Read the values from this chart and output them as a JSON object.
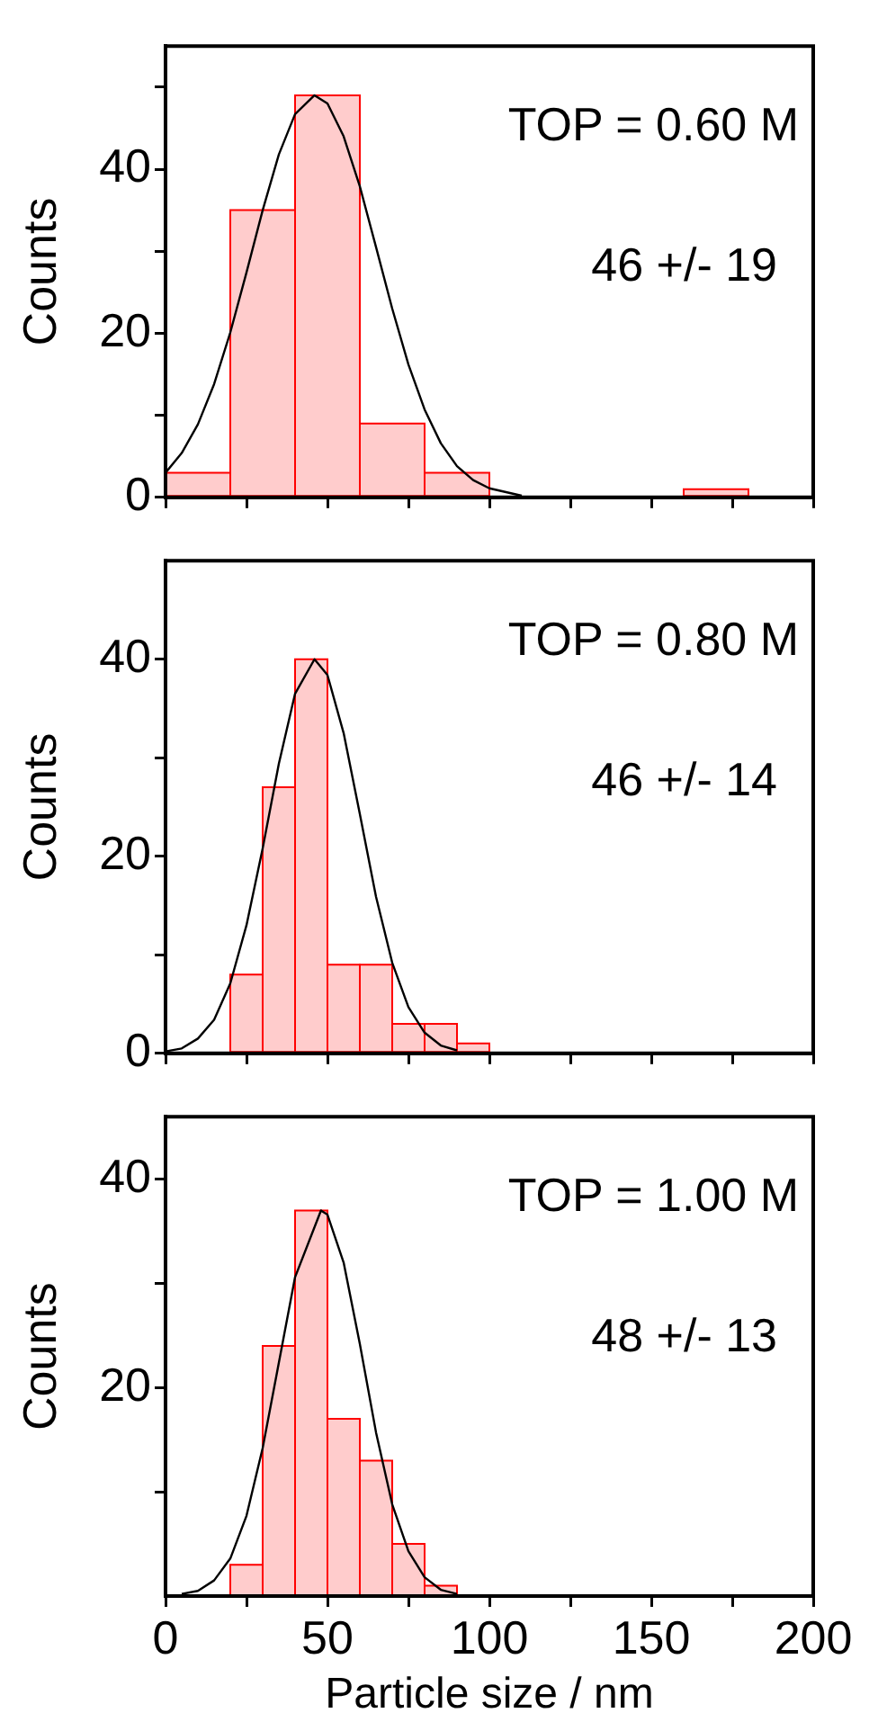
{
  "chart_data": [
    {
      "type": "histogram",
      "bins": [
        0,
        20,
        40,
        60,
        80,
        100,
        120,
        140,
        160,
        180
      ],
      "values": [
        3,
        35,
        49,
        9,
        3,
        0,
        0,
        0,
        1
      ],
      "color": "#ff0000",
      "series": [
        {
          "type": "line",
          "color": "#000000",
          "x": [
            0,
            5,
            10,
            15,
            20,
            25,
            30,
            35,
            40,
            46,
            50,
            55,
            60,
            65,
            70,
            75,
            80,
            85,
            90,
            95,
            100,
            110
          ],
          "values": [
            3,
            5.4,
            8.9,
            13.8,
            20.1,
            27.4,
            35,
            41.8,
            46.7,
            49,
            48,
            44,
            37.9,
            30.5,
            23,
            16.2,
            10.7,
            6.6,
            3.8,
            2.1,
            1.1,
            0.2
          ]
        }
      ],
      "xlim": [
        0,
        200
      ],
      "xticks": [
        0,
        {
          "value": 25,
          "label": null
        },
        50,
        {
          "value": 75,
          "label": null
        },
        100,
        {
          "value": 125,
          "label": null
        },
        150,
        {
          "value": 175,
          "label": null
        },
        200
      ],
      "ylim": [
        0,
        55
      ],
      "yticks": [
        0,
        {
          "value": 10,
          "label": null
        },
        20,
        {
          "value": 30,
          "label": null
        },
        40,
        {
          "value": 50,
          "label": null
        }
      ],
      "ylabel": "Counts",
      "tick_labels": "y",
      "annotations": [
        "TOP = 0.60 M",
        "46 +/- 19"
      ]
    },
    {
      "type": "histogram",
      "bins": [
        20,
        30,
        40,
        50,
        60,
        70,
        80,
        90,
        100
      ],
      "values": [
        8,
        27,
        40,
        9,
        9,
        3,
        3,
        1
      ],
      "color": "#ff0000",
      "series": [
        {
          "type": "line",
          "color": "#000000",
          "x": [
            0,
            5,
            10,
            15,
            20,
            25,
            30,
            35,
            40,
            46,
            50,
            55,
            60,
            65,
            70,
            75,
            80,
            85,
            90
          ],
          "values": [
            0.2,
            0.5,
            1.5,
            3.4,
            7.1,
            13,
            20.8,
            29.4,
            36.5,
            40,
            38.4,
            32.5,
            24.3,
            15.9,
            9.2,
            4.7,
            2.1,
            0.8,
            0.3
          ]
        }
      ],
      "xlim": [
        0,
        200
      ],
      "xticks": [
        0,
        {
          "value": 25,
          "label": null
        },
        50,
        {
          "value": 75,
          "label": null
        },
        100,
        {
          "value": 125,
          "label": null
        },
        150,
        {
          "value": 175,
          "label": null
        },
        200
      ],
      "ylim": [
        0,
        50
      ],
      "yticks": [
        0,
        {
          "value": 10,
          "label": null
        },
        20,
        {
          "value": 30,
          "label": null
        },
        40
      ],
      "ylabel": "Counts",
      "tick_labels": "y",
      "annotations": [
        "TOP = 0.80 M",
        "46 +/- 14"
      ]
    },
    {
      "type": "histogram",
      "bins": [
        20,
        30,
        40,
        50,
        60,
        70,
        80,
        90
      ],
      "values": [
        3,
        24,
        37,
        17,
        13,
        5,
        1
      ],
      "color": "#ff0000",
      "series": [
        {
          "type": "line",
          "color": "#000000",
          "x": [
            5,
            10,
            15,
            20,
            25,
            30,
            35,
            40,
            48,
            50,
            55,
            60,
            65,
            70,
            75,
            80,
            85,
            90
          ],
          "values": [
            0.2,
            0.5,
            1.5,
            3.6,
            7.7,
            14.2,
            22.4,
            30.6,
            37,
            36.6,
            32,
            24.2,
            15.7,
            8.8,
            4.3,
            1.8,
            0.6,
            0.2
          ]
        }
      ],
      "xlim": [
        0,
        200
      ],
      "xticks": [
        0,
        {
          "value": 25,
          "label": null
        },
        50,
        {
          "value": 75,
          "label": null
        },
        100,
        {
          "value": 125,
          "label": null
        },
        150,
        {
          "value": 175,
          "label": null
        },
        200
      ],
      "ylim": [
        0,
        46
      ],
      "yticks": [
        {
          "value": 10,
          "label": null
        },
        20,
        {
          "value": 30,
          "label": null
        },
        40
      ],
      "ylabel": "Counts",
      "xlabel": "Particle size / nm",
      "annotations": [
        "TOP = 1.00 M",
        "48 +/- 13"
      ]
    }
  ]
}
